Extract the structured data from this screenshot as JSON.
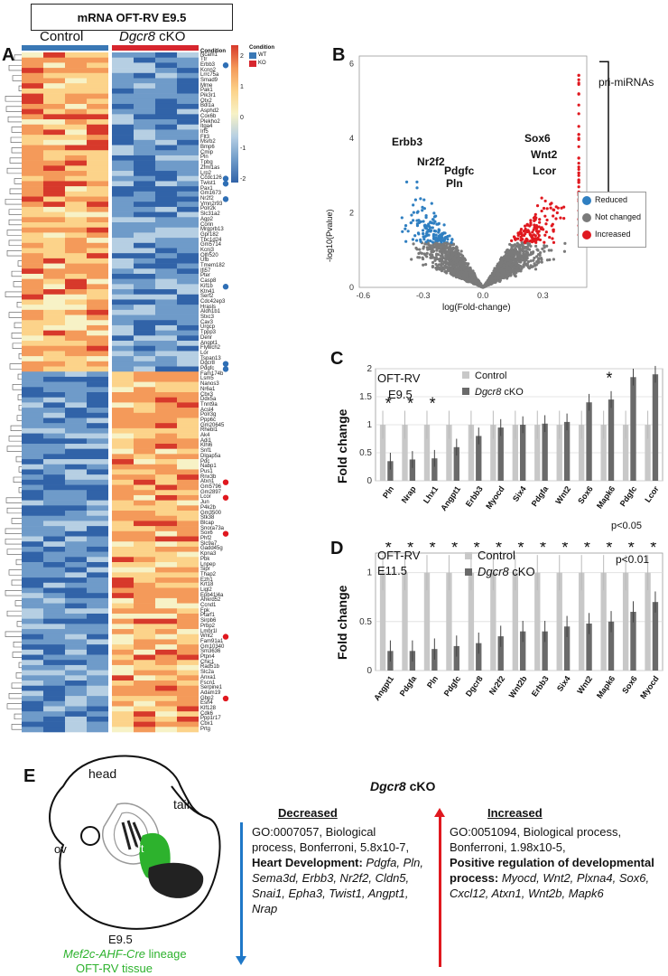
{
  "panels": {
    "A": "A",
    "B": "B",
    "C": "C",
    "D": "D",
    "E": "E"
  },
  "heatmap": {
    "title": "mRNA OFT-RV E9.5",
    "group_control": "Control",
    "group_ko_italic": "Dgcr8",
    "group_ko_rest": " cKO",
    "condition_label": "Condition",
    "legend_title": "Condition",
    "legend_items": [
      {
        "label": "WT",
        "color": "#3a78b5"
      },
      {
        "label": "KO",
        "color": "#d7262e"
      }
    ],
    "scale_ticks": [
      "2",
      "1",
      "0",
      "-1",
      "-2"
    ],
    "genes": [
      "Ncam1",
      "Ttr",
      "Erbb3",
      "Kcnn2",
      "Lrrc75a",
      "Smad9",
      "Mme",
      "Pak1",
      "Pik3r1",
      "Otx2",
      "Bdl1a",
      "Asphd2",
      "Cox6b",
      "Plekho2",
      "Itga4",
      "Irf5",
      "Flt3",
      "Msrb2",
      "Bmp6",
      "Cmip",
      "Pln",
      "Tpbg",
      "Zfml1as",
      "Lrp2",
      "Ccdc126",
      "Twist1",
      "Pax1",
      "Gm1673",
      "Nr2f2",
      "Vmn2r93",
      "Polr2k",
      "Slc31a2",
      "Agp2",
      "Corin",
      "Mrgprb13",
      "Gpr182",
      "Tbc1d24",
      "Gm5714",
      "Kcnj3",
      "Olfr520",
      "Ufb",
      "Tmem182",
      "Ifi57",
      "Pter",
      "Casp8",
      "Kif1b",
      "Ktn41",
      "Serf2",
      "Cdc42ep3",
      "Hrasls",
      "Aldh1b1",
      "Stxc3",
      "Cav3",
      "Urgcp",
      "Tppp3",
      "Denr",
      "Angpt1",
      "Flywch2",
      "Lor",
      "Tspan13",
      "Dgcr8",
      "Pdgfc",
      "Fam174b",
      "Lsm5",
      "Nanos3",
      "Nr6a1",
      "Cbx3",
      "Ddx5a",
      "Tnnt9a",
      "Acsl4",
      "Polr3g",
      "Ppp6c",
      "Gm20645",
      "Rhebl1",
      "Ak4",
      "Adi1",
      "Klhl6",
      "Snf1",
      "Dlgap5a",
      "Pdc",
      "Nabp1",
      "Pus1",
      "Rnx3b",
      "Atxn1",
      "Gm5796",
      "Gm2897",
      "Lcor",
      "Jun",
      "P4k2b",
      "Gm3500",
      "Stk38",
      "Blcap",
      "Snora73a",
      "Sox6",
      "Phf2",
      "Slc9a7",
      "Gadd45g",
      "Kpna3",
      "Pbk",
      "Lnpep",
      "Sipr",
      "Thap2",
      "Ezh1",
      "Krt18",
      "Ligl2",
      "Epb41l4a",
      "Ahkrd52",
      "Ccnd1",
      "Fpk",
      "Ptarf1",
      "Sirpb6",
      "Prbp2",
      "Lmbr1l",
      "Wnt2",
      "Fam91a1",
      "Gm10340",
      "Sm3636",
      "Ptpn4",
      "Chic1",
      "Rad51b",
      "Slc2a",
      "Anxa1",
      "Fscn1",
      "Serpine1",
      "Adam19",
      "Gbp2",
      "Esrl4",
      "Klf128",
      "Cdk6",
      "Ppp1r17",
      "Cbx1",
      "Prtg"
    ],
    "blue_dot_genes": [
      "Erbb3",
      "Ccdc126",
      "Twist1",
      "Nr2f2",
      "Kif1b",
      "Dgcr8",
      "Pdgfc"
    ],
    "red_dot_genes": [
      "Atxn1",
      "Lcor",
      "Sox6",
      "Wnt2",
      "Gbp2"
    ]
  },
  "volcano": {
    "xlabel": "log(Fold-change)",
    "ylabel": "-log10(Pvalue)",
    "x_ticks": [
      "-0.6",
      "-0.3",
      "0.0",
      "0.3"
    ],
    "y_ticks": [
      "0",
      "2",
      "4",
      "6"
    ],
    "xlim": [
      -0.62,
      0.52
    ],
    "ylim": [
      0,
      6.2
    ],
    "labels": [
      "Erbb3",
      "Nr2f2",
      "Pdgfc",
      "Pln",
      "Sox6",
      "Wnt2",
      "Lcor"
    ],
    "bracket_label": "pri-miRNAs",
    "legend": [
      {
        "label": "Reduced",
        "color": "#2f7fc1"
      },
      {
        "label": "Not changed",
        "color": "#7a7a7a"
      },
      {
        "label": "Increased",
        "color": "#e0181f"
      }
    ]
  },
  "chart_data": [
    {
      "type": "bar",
      "title": "OFT-RV E9.5",
      "ylabel": "Fold change",
      "ylim": [
        0,
        2
      ],
      "y_ticks": [
        "0",
        "0.5",
        "1",
        "1.5",
        "2"
      ],
      "categories": [
        "Pln",
        "Nrap",
        "Lhx1",
        "Angpt1",
        "Erbb3",
        "Myocd",
        "Six4",
        "Pdgfa",
        "Wnt2",
        "Sox6",
        "Mapk6",
        "Pdgfc",
        "Lcor"
      ],
      "series": [
        {
          "name": "Control",
          "values": [
            1,
            1,
            1,
            1,
            1,
            1,
            1,
            1,
            1,
            1,
            1,
            1,
            1
          ]
        },
        {
          "name": "Dgcr8 cKO",
          "values": [
            0.35,
            0.38,
            0.4,
            0.6,
            0.8,
            0.95,
            1.0,
            1.02,
            1.05,
            1.4,
            1.45,
            1.85,
            1.9
          ]
        }
      ],
      "significant": [
        true,
        true,
        true,
        false,
        false,
        false,
        false,
        false,
        false,
        false,
        true,
        false,
        true
      ],
      "pvalue_note": "p<0.05",
      "legend_ko_italic": "Dgcr8",
      "legend_ko_rest": " cKO"
    },
    {
      "type": "bar",
      "title": "OFT-RV E11.5",
      "ylabel": "Fold change",
      "ylim": [
        0,
        1.2
      ],
      "y_ticks": [
        "0",
        "0.5",
        "1"
      ],
      "categories": [
        "Angpt1",
        "Pdgfa",
        "Pln",
        "Pdgfc",
        "Dgcr8",
        "Nr2f2",
        "Wnt2b",
        "Erbb3",
        "Six4",
        "Wnt2",
        "Mapk6",
        "Sox6",
        "Myocd"
      ],
      "series": [
        {
          "name": "Control",
          "values": [
            1,
            1,
            1,
            1,
            1,
            1,
            1,
            1,
            1,
            1,
            1,
            1,
            1
          ]
        },
        {
          "name": "Dgcr8 cKO",
          "values": [
            0.2,
            0.2,
            0.22,
            0.25,
            0.28,
            0.35,
            0.4,
            0.4,
            0.45,
            0.48,
            0.5,
            0.6,
            0.7
          ]
        }
      ],
      "significant": [
        true,
        true,
        true,
        true,
        true,
        true,
        true,
        true,
        true,
        true,
        true,
        true,
        true
      ],
      "pvalue_note": "p<0.01",
      "legend_ko_italic": "Dgcr8",
      "legend_ko_rest": " cKO"
    }
  ],
  "embryo": {
    "head": "head",
    "tail": "tail",
    "ov": "ov",
    "oft": "oft",
    "stage": "E9.5",
    "lineage_italic": "Mef2c-AHF-Cre",
    "lineage_rest": " lineage",
    "tissue": "OFT-RV tissue",
    "green": "#2db22d"
  },
  "go": {
    "header_italic": "Dgcr8",
    "header_rest": " cKO",
    "decreased": {
      "heading": "Decreased",
      "line1": "GO:0007057, Biological",
      "line2": "process, Bonferroni, 5.8x10-7,",
      "bold": "Heart Development:",
      "genes": " Pdgfa, Pln, Sema3d, Erbb3, Nr2f2, Cldn5, Snai1, Epha3, Twist1, Angpt1, Nrap"
    },
    "increased": {
      "heading": "Increased",
      "line1": "GO:0051094, Biological process,",
      "line2": "Bonferroni, 1.98x10-5,",
      "bold": "Positive regulation of developmental process:",
      "genes": " Myocd, Wnt2, Plxna4, Sox6, Cxcl12, Atxn1, Wnt2b, Mapk6"
    },
    "colors": {
      "down": "#1f78c8",
      "up": "#e0181f"
    }
  }
}
